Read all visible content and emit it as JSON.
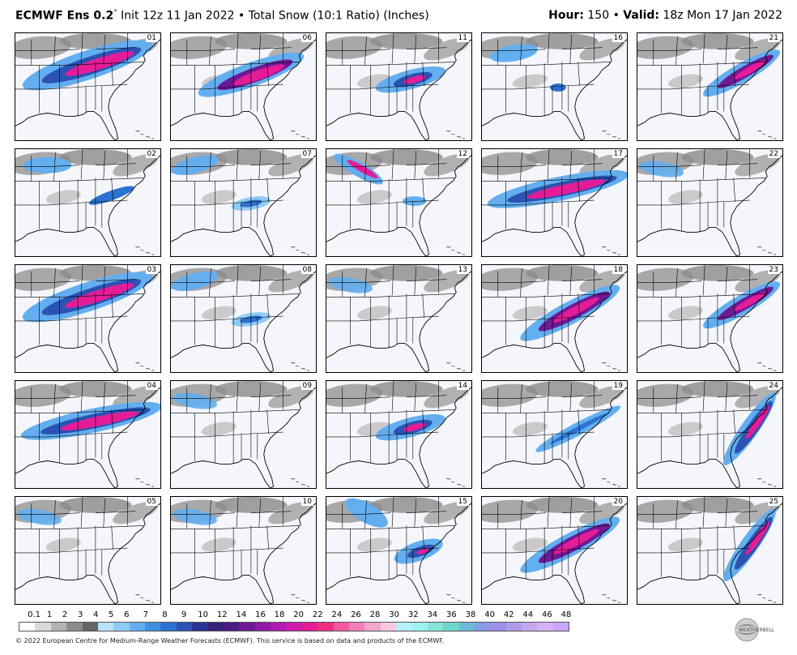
{
  "header": {
    "model": "ECMWF Ens 0.2",
    "degree": "°",
    "init": "Init 12z 11 Jan 2022",
    "separator": "•",
    "product": "Total Snow (10:1 Ratio) (Inches)",
    "hour_label": "Hour:",
    "hour_value": "150",
    "valid_label": "Valid:",
    "valid_value": "18z Mon 17 Jan 2022"
  },
  "panels": [
    {
      "label": "01",
      "blob": "northern-band-heavy"
    },
    {
      "label": "06",
      "blob": "mid-band-heavy"
    },
    {
      "label": "11",
      "blob": "central-spot"
    },
    {
      "label": "16",
      "blob": "light-scattered"
    },
    {
      "label": "21",
      "blob": "mid-atlantic-band"
    },
    {
      "label": "02",
      "blob": "light-band"
    },
    {
      "label": "07",
      "blob": "light-band-south"
    },
    {
      "label": "12",
      "blob": "northwest-band"
    },
    {
      "label": "17",
      "blob": "long-band-heavy"
    },
    {
      "label": "22",
      "blob": "very-light"
    },
    {
      "label": "03",
      "blob": "northern-band-heavy"
    },
    {
      "label": "08",
      "blob": "light-band-south"
    },
    {
      "label": "13",
      "blob": "very-light"
    },
    {
      "label": "18",
      "blob": "diagonal-heavy"
    },
    {
      "label": "23",
      "blob": "mid-atlantic-band"
    },
    {
      "label": "04",
      "blob": "long-band-heavy"
    },
    {
      "label": "09",
      "blob": "very-light"
    },
    {
      "label": "14",
      "blob": "central-spot"
    },
    {
      "label": "19",
      "blob": "diagonal-light"
    },
    {
      "label": "24",
      "blob": "coastal-heavy"
    },
    {
      "label": "05",
      "blob": "very-light"
    },
    {
      "label": "10",
      "blob": "very-light"
    },
    {
      "label": "15",
      "blob": "southeast-spot"
    },
    {
      "label": "20",
      "blob": "diagonal-heavy"
    },
    {
      "label": "25",
      "blob": "coastal-heavy"
    }
  ],
  "colorbar": {
    "ticks": [
      "0.1",
      "1",
      "2",
      "3",
      "4",
      "5",
      "6",
      "7",
      "8",
      "9",
      "10",
      "12",
      "14",
      "16",
      "18",
      "20",
      "22",
      "24",
      "26",
      "28",
      "30",
      "32",
      "34",
      "36",
      "38",
      "40",
      "42",
      "44",
      "46",
      "48"
    ],
    "colors": [
      "#ffffff",
      "#d9d9d9",
      "#b3b3b3",
      "#8c8c8c",
      "#666666",
      "#b9e3fb",
      "#8fcbf5",
      "#63aeef",
      "#4190e0",
      "#2c72d0",
      "#2a53b3",
      "#2b3497",
      "#35217a",
      "#4b1a83",
      "#6c1a95",
      "#8e1aa6",
      "#b01bb1",
      "#cf1cad",
      "#e51c97",
      "#f0307f",
      "#f358a0",
      "#f27fba",
      "#f2a7cf",
      "#f6c9e0",
      "#b9f0ff",
      "#9ff0f0",
      "#85e6d8",
      "#6fd7c9",
      "#6fb8d6",
      "#8a9be8",
      "#9d8fea",
      "#b19ae8",
      "#c5a6ef",
      "#d9b2f6",
      "#c9a7ff"
    ],
    "logo_text": "WEATHERBELL"
  },
  "footer": {
    "copyright": "© 2022 European Centre for Medium-Range Weather Forecasts (ECMWF). This service is based on data and products of the ECMWF."
  }
}
